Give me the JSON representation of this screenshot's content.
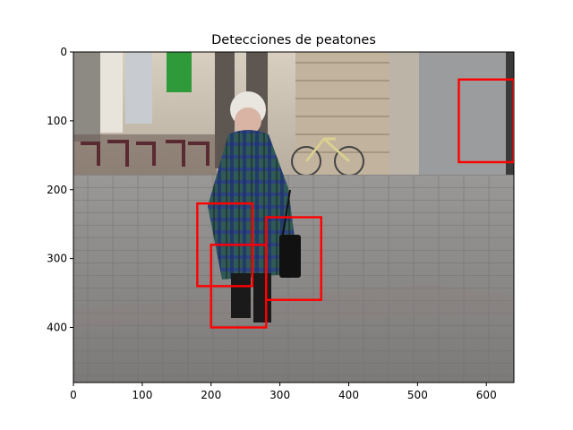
{
  "chart_data": {
    "type": "image",
    "title": "Detecciones de peatones",
    "xlim": [
      0,
      640
    ],
    "ylim": [
      480,
      0
    ],
    "x_ticks": [
      0,
      100,
      200,
      300,
      400,
      500,
      600
    ],
    "y_ticks": [
      0,
      100,
      200,
      300,
      400
    ],
    "image_content": "street photo: elderly woman in green and blue plaid coat walking on paved sidewalk, building facade, cafe chairs and bicycle in background",
    "boxes_color": "#ff0000",
    "boxes": [
      {
        "x0": 560,
        "y0": 40,
        "x1": 640,
        "y1": 160
      },
      {
        "x0": 180,
        "y0": 220,
        "x1": 260,
        "y1": 340
      },
      {
        "x0": 280,
        "y0": 240,
        "x1": 360,
        "y1": 360
      },
      {
        "x0": 200,
        "y0": 280,
        "x1": 280,
        "y1": 400
      }
    ]
  }
}
